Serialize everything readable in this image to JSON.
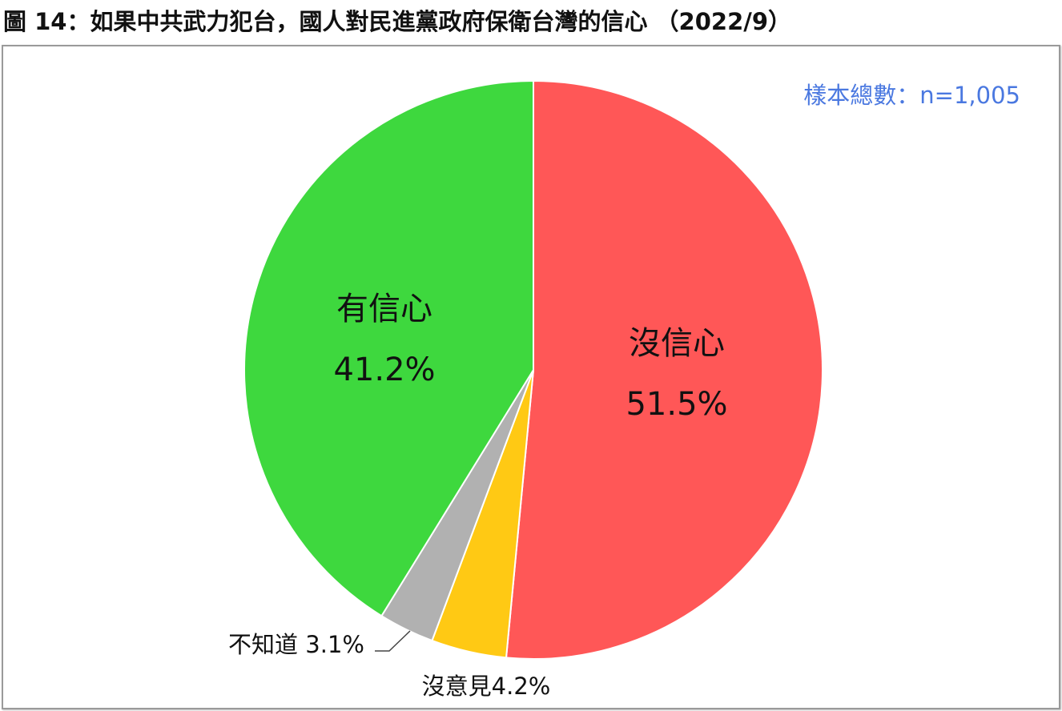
{
  "chart_data": {
    "type": "pie",
    "title": "圖 14：如果中共武力犯台，國人對民進黨政府保衛台灣的信心 （2022/9）",
    "annotation": "樣本總數：n=1,005",
    "start": "top",
    "direction": "clockwise",
    "slices": [
      {
        "label": "沒信心",
        "value": 51.5,
        "value_label": "51.5%",
        "color": "#ff5757"
      },
      {
        "label": "沒意見",
        "value": 4.2,
        "value_label": "4.2%",
        "color": "#ffc914"
      },
      {
        "label": "不知道",
        "value": 3.1,
        "value_label": "3.1%",
        "color": "#b1b1b1"
      },
      {
        "label": "有信心",
        "value": 41.2,
        "value_label": "41.2%",
        "color": "#3ed83e"
      }
    ]
  }
}
